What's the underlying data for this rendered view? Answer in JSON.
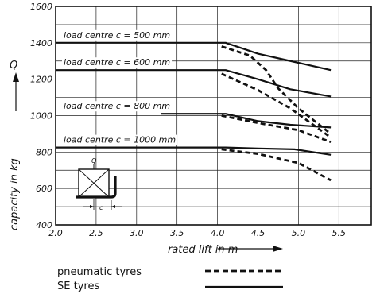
{
  "chart_data": {
    "type": "line",
    "xlabel": "rated lift in m",
    "ylabel": "capacity in kg",
    "yaxis_symbol": "Q",
    "xlim": [
      2.0,
      5.9
    ],
    "ylim": [
      400,
      1600
    ],
    "xticks": [
      "2.0",
      "2.5",
      "3.0",
      "3.5",
      "4.0",
      "4.5",
      "5.0",
      "5.5"
    ],
    "yticks": [
      "400",
      "600",
      "800",
      "1000",
      "1200",
      "1400",
      "1600"
    ],
    "grid": true,
    "legend_position": "bottom",
    "legend": [
      {
        "label": "pneumatic tyres",
        "style": "dashed"
      },
      {
        "label": "SE tyres",
        "style": "solid"
      }
    ],
    "inset_labels": {
      "q": "Q",
      "c": "c"
    },
    "curve_groups": [
      {
        "label": "load centre c = 500 mm",
        "se_tyres": [
          [
            2.0,
            1400
          ],
          [
            4.1,
            1400
          ],
          [
            4.5,
            1340
          ],
          [
            5.0,
            1290
          ],
          [
            5.4,
            1250
          ]
        ],
        "pneumatic_tyres": [
          [
            4.05,
            1380
          ],
          [
            4.4,
            1330
          ],
          [
            4.6,
            1250
          ],
          [
            4.75,
            1150
          ],
          [
            5.0,
            1040
          ],
          [
            5.4,
            900
          ]
        ]
      },
      {
        "label": "load centre c = 600 mm",
        "se_tyres": [
          [
            2.0,
            1250
          ],
          [
            4.1,
            1250
          ],
          [
            4.5,
            1200
          ],
          [
            4.9,
            1145
          ],
          [
            5.4,
            1105
          ]
        ],
        "pneumatic_tyres": [
          [
            4.05,
            1230
          ],
          [
            4.5,
            1140
          ],
          [
            4.9,
            1040
          ],
          [
            5.4,
            880
          ]
        ]
      },
      {
        "label": "load centre c = 800 mm",
        "se_tyres": [
          [
            3.3,
            1010
          ],
          [
            4.1,
            1010
          ],
          [
            4.5,
            970
          ],
          [
            4.9,
            950
          ],
          [
            5.4,
            935
          ]
        ],
        "pneumatic_tyres": [
          [
            4.05,
            1000
          ],
          [
            4.5,
            960
          ],
          [
            5.0,
            920
          ],
          [
            5.4,
            855
          ]
        ]
      },
      {
        "label": "load centre c = 1000 mm",
        "se_tyres": [
          [
            2.0,
            825
          ],
          [
            4.1,
            825
          ],
          [
            4.5,
            820
          ],
          [
            4.95,
            815
          ],
          [
            5.4,
            785
          ]
        ],
        "pneumatic_tyres": [
          [
            4.05,
            815
          ],
          [
            4.5,
            790
          ],
          [
            5.0,
            740
          ],
          [
            5.4,
            645
          ]
        ]
      }
    ]
  }
}
